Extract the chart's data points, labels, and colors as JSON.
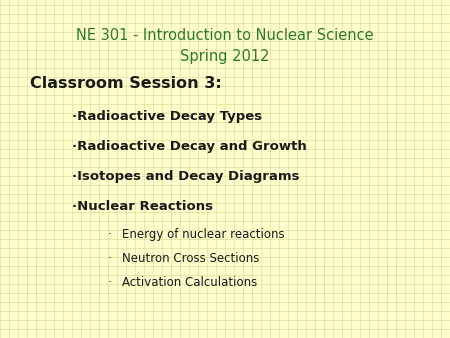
{
  "title_line1": "NE 301 - Introduction to Nuclear Science",
  "title_line2": "Spring 2012",
  "title_color": "#2d7a2d",
  "session_label": "Classroom Session 3:",
  "session_color": "#1a1a1a",
  "main_bullets": [
    "Radioactive Decay Types",
    "Radioactive Decay and Growth",
    "Isotopes and Decay Diagrams",
    "Nuclear Reactions"
  ],
  "sub_bullets": [
    "Energy of nuclear reactions",
    "Neutron Cross Sections",
    "Activation Calculations"
  ],
  "main_bullet_color": "#1a1a1a",
  "sub_bullet_color": "#1a1a1a",
  "background_color": "#ffffcc",
  "grid_color": "#d4d49a",
  "title_fontsize": 10.5,
  "session_fontsize": 11.5,
  "main_bullet_fontsize": 9.5,
  "sub_bullet_fontsize": 8.5
}
